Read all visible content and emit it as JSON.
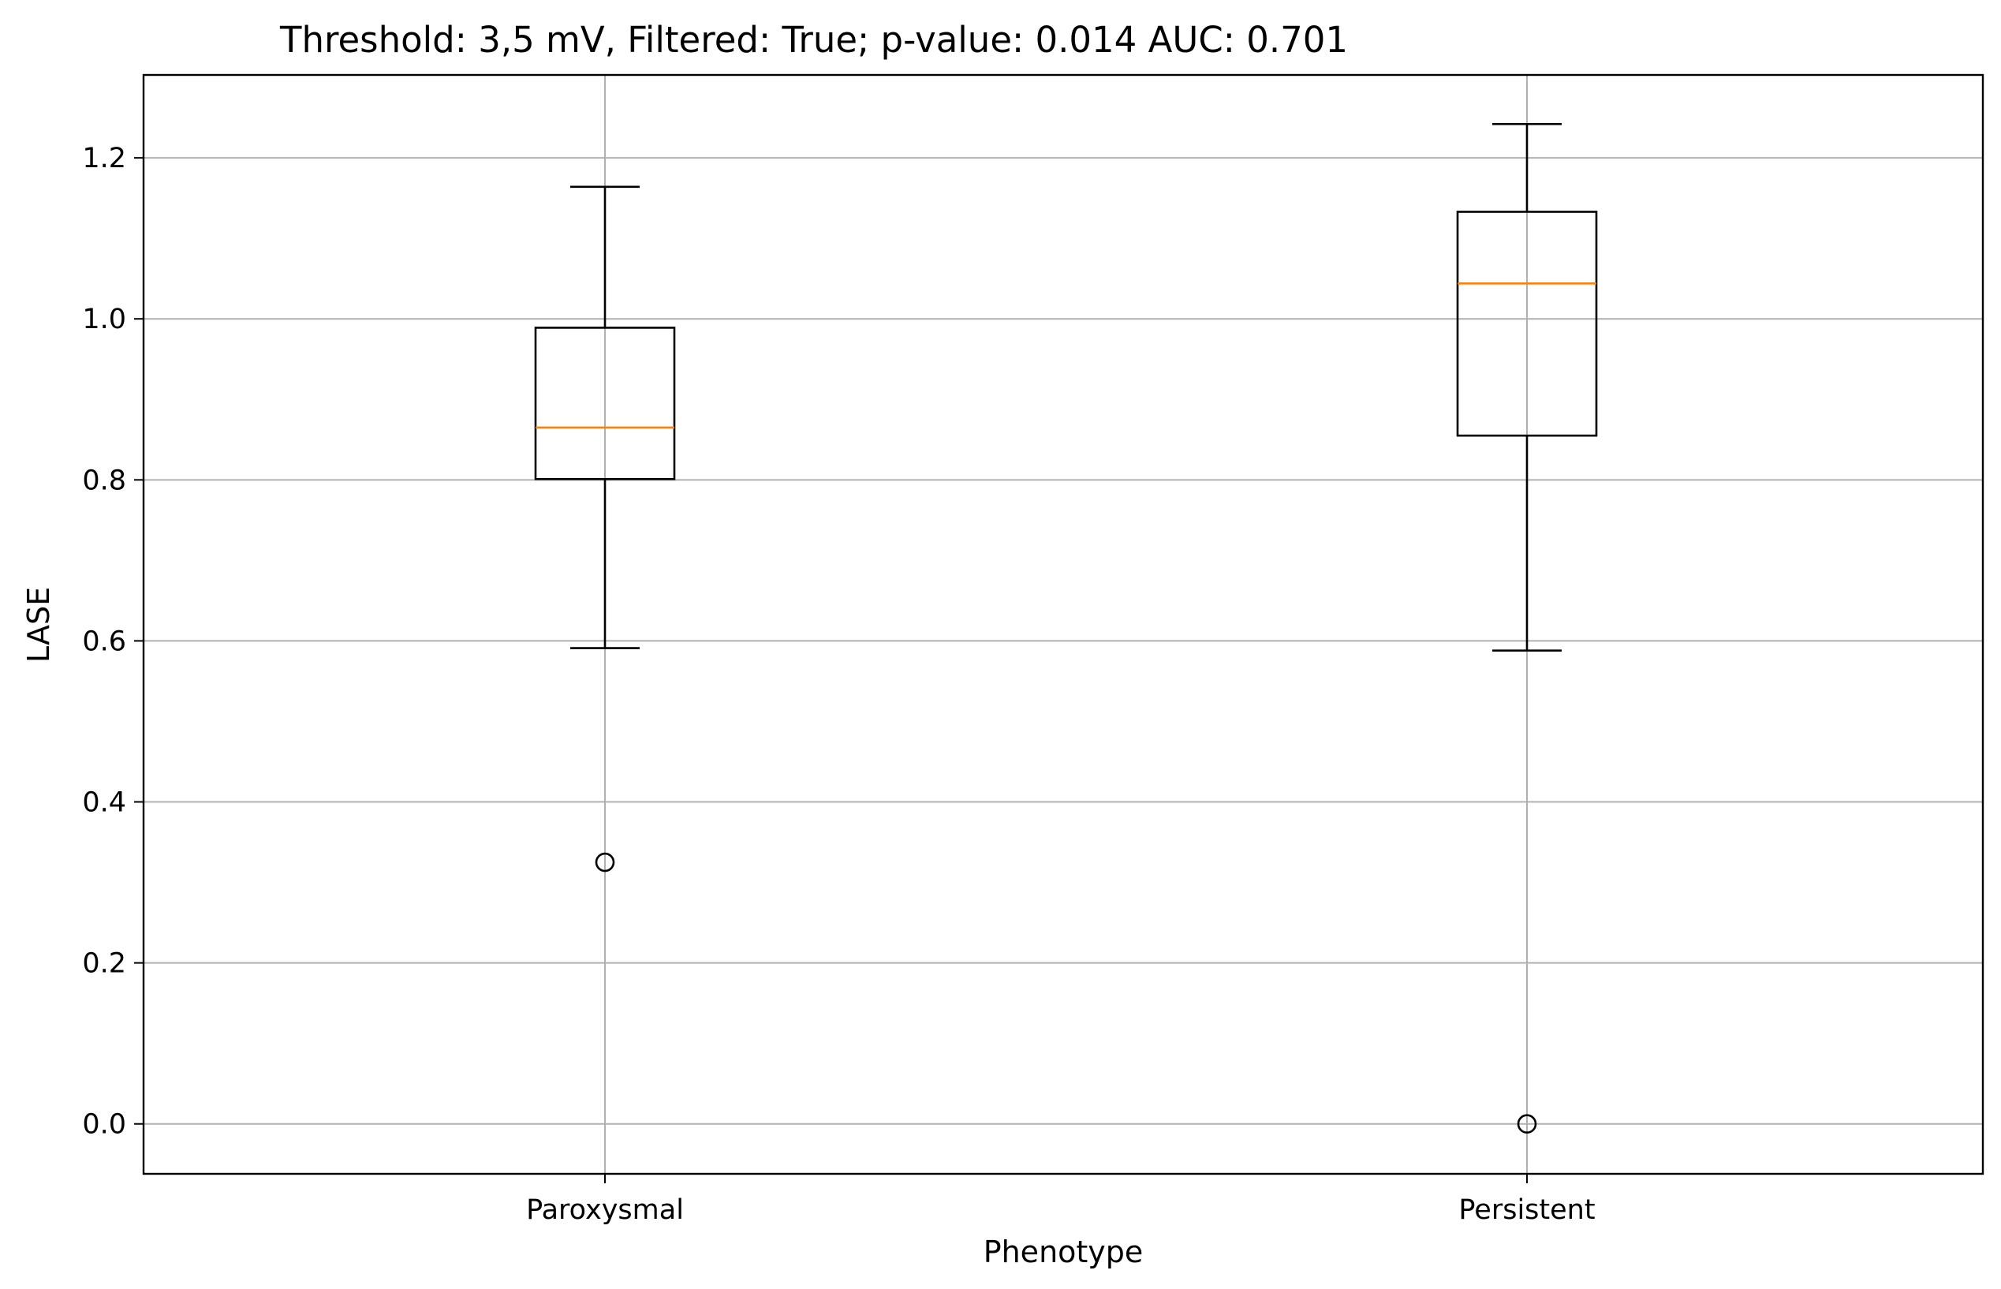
{
  "chart_data": {
    "type": "boxplot",
    "title": "Threshold: 3,5 mV, Filtered: True; p-value: 0.014 AUC: 0.701",
    "xlabel": "Phenotype",
    "ylabel": "LASE",
    "categories": [
      "Paroxysmal",
      "Persistent"
    ],
    "ylim": [
      -0.062,
      1.303
    ],
    "yticks": [
      0.0,
      0.2,
      0.4,
      0.6,
      0.8,
      1.0,
      1.2
    ],
    "ytick_labels": [
      "0.0",
      "0.2",
      "0.4",
      "0.6",
      "0.8",
      "1.0",
      "1.2"
    ],
    "grid": true,
    "boxes": [
      {
        "category": "Paroxysmal",
        "whisker_low": 0.591,
        "q1": 0.801,
        "median": 0.865,
        "q3": 0.989,
        "whisker_high": 1.164,
        "outliers": [
          0.325
        ]
      },
      {
        "category": "Persistent",
        "whisker_low": 0.588,
        "q1": 0.855,
        "median": 1.044,
        "q3": 1.133,
        "whisker_high": 1.242,
        "outliers": [
          0.0
        ]
      }
    ],
    "colors": {
      "box": "#000000",
      "median": "#ff7f0e",
      "grid": "#b0b0b0"
    }
  }
}
